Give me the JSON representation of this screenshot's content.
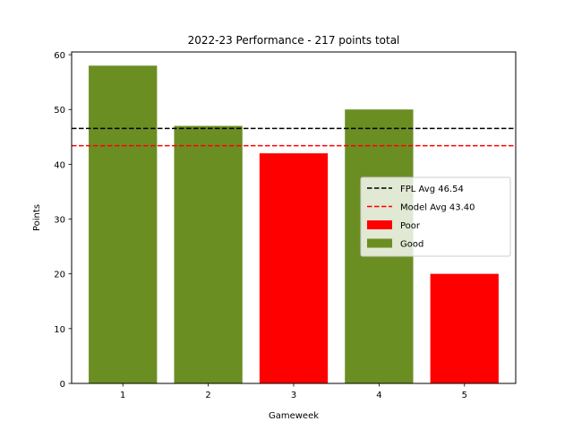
{
  "chart_data": {
    "type": "bar",
    "title": "2022-23 Performance - 217 points total",
    "xlabel": "Gameweek",
    "ylabel": "Points",
    "categories": [
      "1",
      "2",
      "3",
      "4",
      "5"
    ],
    "values": [
      58,
      47,
      42,
      50,
      20
    ],
    "bar_ratings": [
      "Good",
      "Good",
      "Poor",
      "Good",
      "Poor"
    ],
    "ylim": [
      0,
      60.5
    ],
    "yticks": [
      0,
      10,
      20,
      30,
      40,
      50,
      60
    ],
    "reference_lines": [
      {
        "name": "FPL Avg 46.54",
        "value": 46.54,
        "color": "#000000",
        "style": "dashed"
      },
      {
        "name": "Model Avg 43.40",
        "value": 43.4,
        "color": "#ff0000",
        "style": "dashed"
      }
    ],
    "series": [
      {
        "name": "Poor",
        "color": "#ff0000"
      },
      {
        "name": "Good",
        "color": "#6b8e23"
      }
    ],
    "legend_position": "center-right",
    "grid": false
  }
}
